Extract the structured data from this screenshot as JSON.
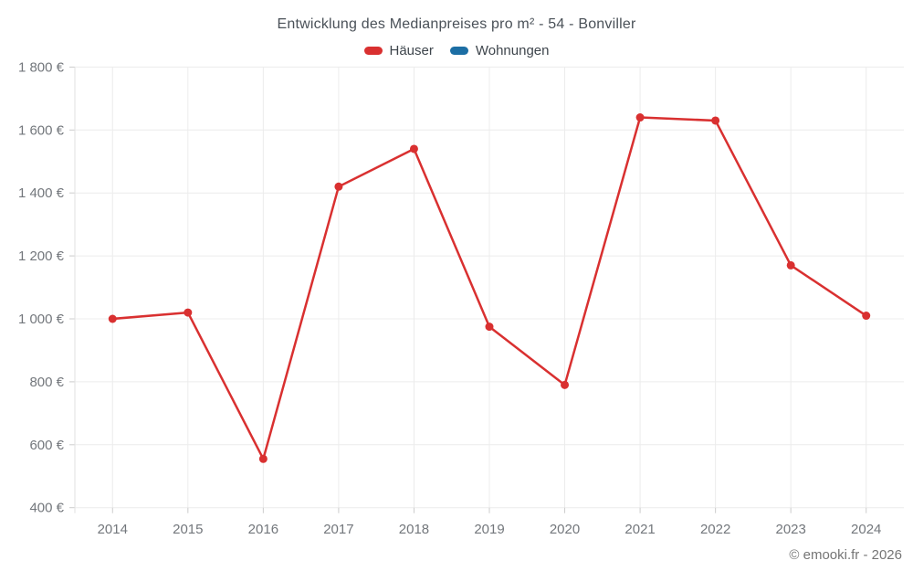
{
  "chart_data": {
    "type": "line",
    "title": "Entwicklung des Medianpreises pro m² - 54 - Bonviller",
    "x": [
      "2014",
      "2015",
      "2016",
      "2017",
      "2018",
      "2019",
      "2020",
      "2021",
      "2022",
      "2023",
      "2024"
    ],
    "series": [
      {
        "name": "Häuser",
        "color": "#d93030",
        "values": [
          1000,
          1020,
          555,
          1420,
          1540,
          975,
          790,
          1640,
          1630,
          1170,
          1010
        ]
      },
      {
        "name": "Wohnungen",
        "color": "#1c6ea4",
        "values": []
      }
    ],
    "xlabel": "",
    "ylabel": "",
    "ylim": [
      400,
      1800
    ],
    "ytick_step": 200,
    "ytick_suffix": " €",
    "thousands_separator": " ",
    "grid": true,
    "legend_position": "top",
    "point_radius": 4.5,
    "line_width": 2.5
  },
  "footer": {
    "credit": "© emooki.fr - 2026"
  },
  "colors": {
    "background": "#ffffff",
    "gridline": "#ececec",
    "axis_line": "#e2e2e2",
    "tick_mark": "#cccccc",
    "axis_label": "#73777c",
    "title_text": "#4a5158",
    "legend_text": "#3e454c",
    "footer_text": "#757575"
  }
}
